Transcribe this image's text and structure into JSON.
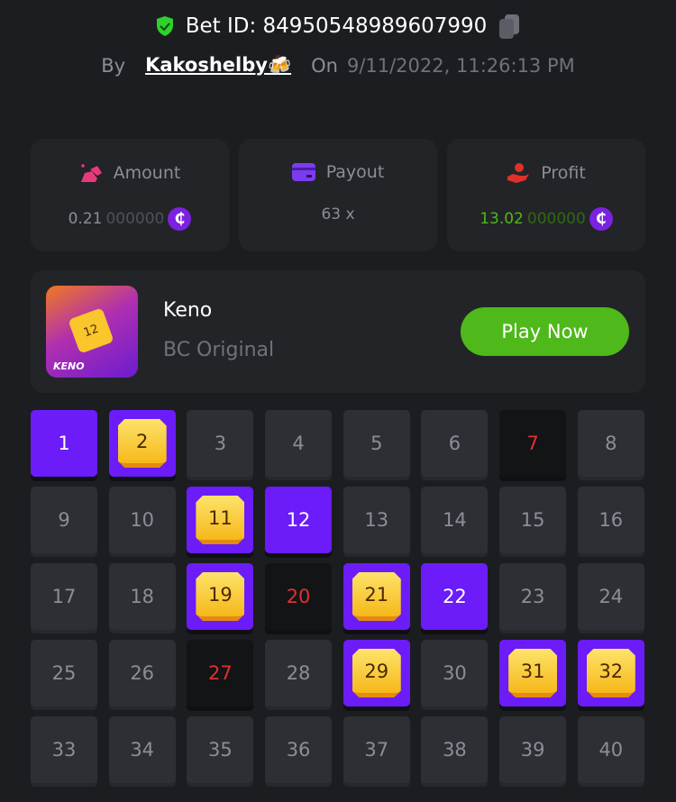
{
  "header": {
    "bet_id": "Bet ID: 84950548989607990",
    "by_label": "By",
    "user": "Kakoshelby🍻",
    "on_label": "On",
    "date": "9/11/2022, 11:26:13 PM"
  },
  "stats": {
    "amount": {
      "label": "Amount",
      "value_main": "0.21",
      "value_dim": "000000",
      "coin": "₵"
    },
    "payout": {
      "label": "Payout",
      "value": "63 x"
    },
    "profit": {
      "label": "Profit",
      "value_main": "13.02",
      "value_dim": "000000",
      "coin": "₵"
    }
  },
  "game": {
    "thumb_label": "KENO",
    "thumb_number": "12",
    "name": "Keno",
    "subtitle": "BC Original",
    "play_label": "Play Now"
  },
  "colors": {
    "accent": "#6b1cf9",
    "win": "#4fb81a",
    "miss": "#e03030"
  },
  "grid": {
    "selected": [
      1,
      12,
      22
    ],
    "hits": [
      2,
      11,
      19,
      21,
      29,
      31,
      32
    ],
    "drawn_misses": [
      7,
      20,
      27
    ],
    "count": 40
  }
}
